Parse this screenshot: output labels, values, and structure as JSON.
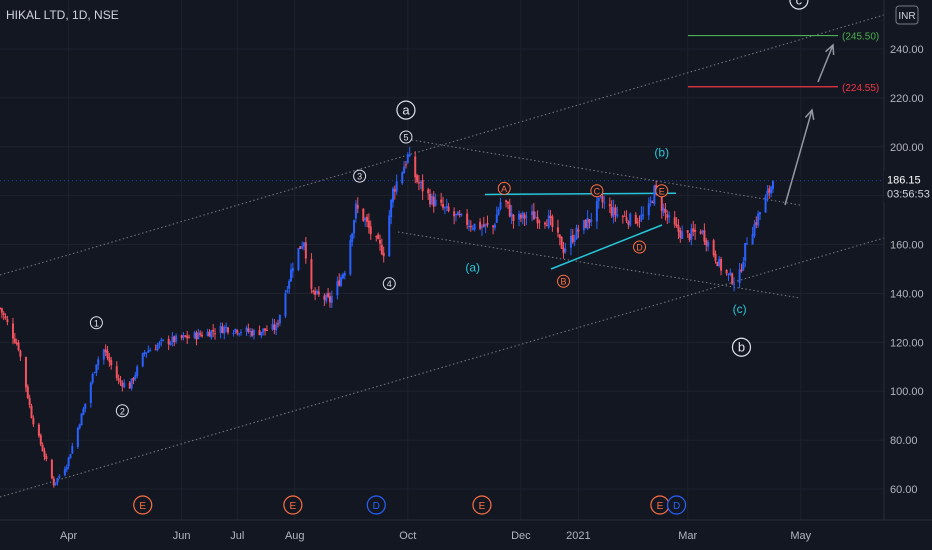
{
  "header": {
    "symbol": "HIKAL LTD, 1D, NSE",
    "currency": "INR"
  },
  "colors": {
    "bg": "#131722",
    "up": "#2962ff",
    "down": "#f7525f",
    "grid": "#1e222d",
    "channel": "#787b86",
    "teal": "#26c6da",
    "orange": "#ff7043",
    "green": "#4caf50",
    "red": "#f23645",
    "arrow": "#9598a1",
    "label": "#e0e3eb"
  },
  "chart_data": {
    "type": "candlestick",
    "title": "HIKAL LTD, 1D, NSE",
    "ylim": [
      50,
      262
    ],
    "yticks": [
      60,
      80,
      100,
      120,
      140,
      160,
      180,
      200,
      220,
      240
    ],
    "ytick_labels": [
      "60.00",
      "80.00",
      "100.00",
      "120.00",
      "140.00",
      "160.00",
      "180.00",
      "200.00",
      "220.00",
      "240.00"
    ],
    "xlim_days": 0,
    "x_labels": [
      {
        "label": "Apr",
        "date": "2020-04-01"
      },
      {
        "label": "Jun",
        "date": "2020-06-01"
      },
      {
        "label": "Jul",
        "date": "2020-07-01"
      },
      {
        "label": "Aug",
        "date": "2020-08-01"
      },
      {
        "label": "Oct",
        "date": "2020-10-01"
      },
      {
        "label": "Dec",
        "date": "2020-12-01"
      },
      {
        "label": "2021",
        "date": "2021-01-01"
      },
      {
        "label": "Mar",
        "date": "2021-03-01"
      },
      {
        "label": "May",
        "date": "2021-05-01"
      }
    ],
    "date_range": [
      "2020-02-24",
      "2021-05-20"
    ],
    "price_path": [
      [
        "2020-02-24",
        134
      ],
      [
        "2020-03-05",
        118
      ],
      [
        "2020-03-12",
        90
      ],
      [
        "2020-03-24",
        62
      ],
      [
        "2020-03-31",
        70
      ],
      [
        "2020-04-10",
        95
      ],
      [
        "2020-04-16",
        112
      ],
      [
        "2020-04-20",
        117
      ],
      [
        "2020-04-28",
        104
      ],
      [
        "2020-05-04",
        102
      ],
      [
        "2020-05-12",
        116
      ],
      [
        "2020-05-22",
        120
      ],
      [
        "2020-06-10",
        123
      ],
      [
        "2020-06-25",
        126
      ],
      [
        "2020-07-10",
        124
      ],
      [
        "2020-07-22",
        126
      ],
      [
        "2020-08-01",
        155
      ],
      [
        "2020-08-06",
        162
      ],
      [
        "2020-08-10",
        140
      ],
      [
        "2020-08-20",
        137
      ],
      [
        "2020-08-28",
        150
      ],
      [
        "2020-09-03",
        175
      ],
      [
        "2020-09-08",
        170
      ],
      [
        "2020-09-12",
        163
      ],
      [
        "2020-09-18",
        157
      ],
      [
        "2020-09-23",
        182
      ],
      [
        "2020-09-27",
        189
      ],
      [
        "2020-10-01",
        196
      ],
      [
        "2020-10-06",
        186
      ],
      [
        "2020-10-14",
        178
      ],
      [
        "2020-10-25",
        172
      ],
      [
        "2020-11-05",
        168
      ],
      [
        "2020-11-16",
        167
      ],
      [
        "2020-11-21",
        180
      ],
      [
        "2020-11-27",
        170
      ],
      [
        "2020-12-06",
        172
      ],
      [
        "2020-12-16",
        170
      ],
      [
        "2020-12-24",
        158
      ],
      [
        "2020-12-31",
        165
      ],
      [
        "2021-01-07",
        170
      ],
      [
        "2021-01-13",
        178
      ],
      [
        "2021-01-20",
        173
      ],
      [
        "2021-01-30",
        170
      ],
      [
        "2021-02-07",
        172
      ],
      [
        "2021-02-11",
        182
      ],
      [
        "2021-02-20",
        168
      ],
      [
        "2021-02-28",
        163
      ],
      [
        "2021-03-08",
        166
      ],
      [
        "2021-03-14",
        158
      ],
      [
        "2021-03-20",
        149
      ],
      [
        "2021-03-28",
        144
      ],
      [
        "2021-04-02",
        162
      ],
      [
        "2021-04-06",
        168
      ],
      [
        "2021-04-10",
        175
      ],
      [
        "2021-04-14",
        182
      ],
      [
        "2021-04-16",
        186.15
      ]
    ],
    "last_price": {
      "value": 186.15,
      "label": "186.15",
      "countdown": "03:56:53"
    },
    "targets": [
      {
        "value": 245.5,
        "label": "(245.50)",
        "color": "#4caf50",
        "from": "2021-03-01",
        "to": "2021-05-01"
      },
      {
        "value": 224.55,
        "label": "(224.55)",
        "color": "#f23645",
        "from": "2021-03-01",
        "to": "2021-05-01"
      }
    ],
    "annotations": {
      "circled_white": [
        {
          "text": "1",
          "date": "2020-04-16",
          "price": 128
        },
        {
          "text": "2",
          "date": "2020-04-30",
          "price": 92
        },
        {
          "text": "3",
          "date": "2020-09-05",
          "price": 188
        },
        {
          "text": "4",
          "date": "2020-09-21",
          "price": 144
        },
        {
          "text": "5",
          "date": "2020-09-30",
          "price": 204
        }
      ],
      "circled_big": [
        {
          "text": "a",
          "date": "2020-09-30",
          "price": 215
        },
        {
          "text": "b",
          "date": "2021-03-30",
          "price": 118
        },
        {
          "text": "c",
          "date": "2021-04-30",
          "price": 260
        }
      ],
      "circled_orange": [
        {
          "text": "A",
          "date": "2020-11-22",
          "price": 183
        },
        {
          "text": "B",
          "date": "2020-12-24",
          "price": 145
        },
        {
          "text": "C",
          "date": "2021-01-11",
          "price": 182
        },
        {
          "text": "D",
          "date": "2021-02-03",
          "price": 159
        },
        {
          "text": "E",
          "date": "2021-02-15",
          "price": 182
        }
      ],
      "teal_text": [
        {
          "text": "(b)",
          "date": "2021-02-15",
          "price": 196
        },
        {
          "text": "(a)",
          "date": "2020-11-05",
          "price": 149
        },
        {
          "text": "(c)",
          "date": "2021-03-29",
          "price": 132
        }
      ],
      "events": [
        {
          "text": "E",
          "date": "2020-05-11",
          "kind": "E"
        },
        {
          "text": "E",
          "date": "2020-07-31",
          "kind": "E"
        },
        {
          "text": "D",
          "date": "2020-09-14",
          "kind": "D"
        },
        {
          "text": "E",
          "date": "2020-11-10",
          "kind": "E"
        },
        {
          "text": "E",
          "date": "2021-02-14",
          "kind": "E"
        },
        {
          "text": "D",
          "date": "2021-02-23",
          "kind": "D"
        }
      ]
    }
  }
}
